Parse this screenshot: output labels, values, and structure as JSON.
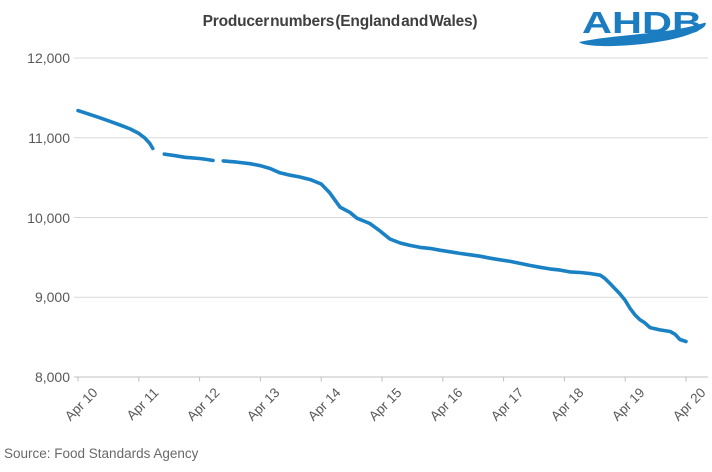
{
  "title": "Producer numbers (England and Wales)",
  "logo": {
    "text": "AHDB"
  },
  "source": "Source: Food Standards Agency",
  "colors": {
    "line": "#1a82c4",
    "grid": "#d9d9d9",
    "axis": "#c2c2c2",
    "tick": "#bfbfbf",
    "title_text": "#3f3f3f",
    "axis_label": "#595959",
    "logo_blue": "#1b7cc0"
  },
  "chart_data": {
    "type": "line",
    "title": "Producer numbers (England and Wales)",
    "xlabel": "",
    "ylabel": "",
    "xlim": [
      0,
      10
    ],
    "ylim": [
      8000,
      12000
    ],
    "grid": "horizontal",
    "legend": "none",
    "x_ticklabels": [
      "Apr 10",
      "Apr 11",
      "Apr 12",
      "Apr 13",
      "Apr 14",
      "Apr 15",
      "Apr 16",
      "Apr 17",
      "Apr 18",
      "Apr 19",
      "Apr 20"
    ],
    "y_ticks": [
      8000,
      9000,
      10000,
      11000,
      12000
    ],
    "y_ticklabels": [
      "8,000",
      "9,000",
      "10,000",
      "11,000",
      "12,000"
    ],
    "series": [
      {
        "name": "Producer numbers",
        "gaps_x": [
          [
            1.23,
            1.42
          ],
          [
            2.22,
            2.39
          ]
        ],
        "segments": [
          [
            [
              0.0,
              11340
            ],
            [
              0.2,
              11290
            ],
            [
              0.36,
              11250
            ],
            [
              0.53,
              11205
            ],
            [
              0.69,
              11160
            ],
            [
              0.86,
              11110
            ],
            [
              1.0,
              11055
            ],
            [
              1.1,
              10995
            ],
            [
              1.18,
              10930
            ],
            [
              1.23,
              10865
            ]
          ],
          [
            [
              1.42,
              10795
            ],
            [
              1.6,
              10775
            ],
            [
              1.76,
              10755
            ],
            [
              2.0,
              10740
            ],
            [
              2.11,
              10728
            ],
            [
              2.22,
              10715
            ]
          ],
          [
            [
              2.39,
              10710
            ],
            [
              2.61,
              10695
            ],
            [
              2.83,
              10675
            ],
            [
              3.0,
              10650
            ],
            [
              3.16,
              10615
            ],
            [
              3.32,
              10560
            ],
            [
              3.49,
              10530
            ],
            [
              3.65,
              10508
            ],
            [
              3.82,
              10475
            ],
            [
              4.0,
              10420
            ],
            [
              4.14,
              10310
            ],
            [
              4.31,
              10130
            ],
            [
              4.47,
              10065
            ],
            [
              4.59,
              9990
            ],
            [
              4.72,
              9950
            ],
            [
              4.8,
              9925
            ],
            [
              4.88,
              9880
            ],
            [
              4.97,
              9830
            ],
            [
              5.13,
              9730
            ],
            [
              5.3,
              9680
            ],
            [
              5.46,
              9650
            ],
            [
              5.63,
              9625
            ],
            [
              5.79,
              9612
            ],
            [
              5.95,
              9590
            ],
            [
              6.12,
              9570
            ],
            [
              6.28,
              9550
            ],
            [
              6.45,
              9532
            ],
            [
              6.61,
              9515
            ],
            [
              6.78,
              9490
            ],
            [
              6.94,
              9470
            ],
            [
              7.11,
              9450
            ],
            [
              7.27,
              9425
            ],
            [
              7.43,
              9400
            ],
            [
              7.6,
              9375
            ],
            [
              7.76,
              9355
            ],
            [
              7.93,
              9340
            ],
            [
              8.09,
              9318
            ],
            [
              8.26,
              9310
            ],
            [
              8.42,
              9298
            ],
            [
              8.59,
              9276
            ],
            [
              8.67,
              9234
            ],
            [
              8.75,
              9172
            ],
            [
              8.83,
              9109
            ],
            [
              8.91,
              9046
            ],
            [
              9.0,
              8960
            ],
            [
              9.08,
              8860
            ],
            [
              9.16,
              8780
            ],
            [
              9.24,
              8720
            ],
            [
              9.32,
              8680
            ],
            [
              9.41,
              8620
            ],
            [
              9.57,
              8590
            ],
            [
              9.74,
              8570
            ],
            [
              9.82,
              8535
            ],
            [
              9.9,
              8470
            ],
            [
              10.0,
              8445
            ]
          ]
        ]
      }
    ]
  }
}
